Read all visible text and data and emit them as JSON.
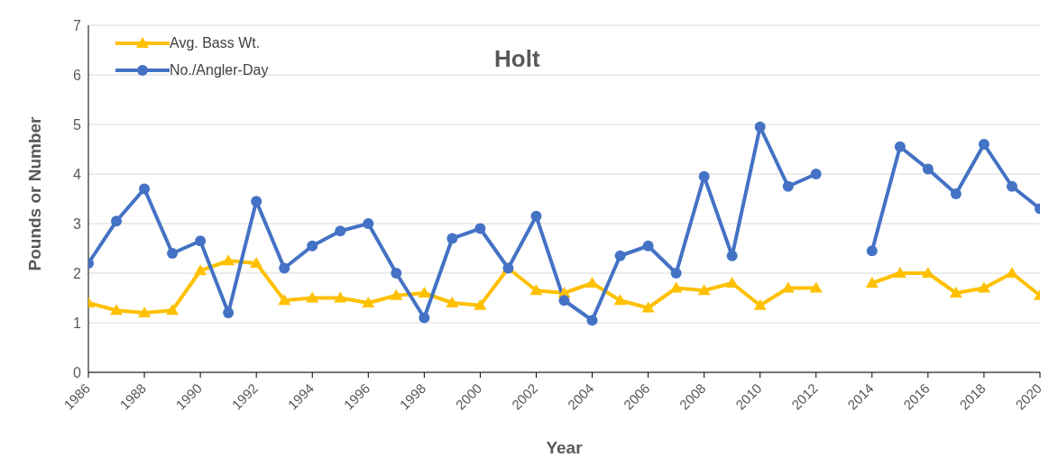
{
  "chart_data": {
    "type": "line",
    "title": "Holt",
    "xlabel": "Year",
    "ylabel": "Pounds or Number",
    "x": [
      1986,
      1987,
      1988,
      1989,
      1990,
      1991,
      1992,
      1993,
      1994,
      1995,
      1996,
      1997,
      1998,
      1999,
      2000,
      2001,
      2002,
      2003,
      2004,
      2005,
      2006,
      2007,
      2008,
      2009,
      2010,
      2011,
      2012,
      2013,
      2014,
      2015,
      2016,
      2017,
      2018,
      2019,
      2020
    ],
    "series": [
      {
        "name": "Avg. Bass Wt.",
        "color": "#ffc000",
        "marker": "triangle",
        "values": [
          1.4,
          1.25,
          1.2,
          1.25,
          2.05,
          2.25,
          2.2,
          1.45,
          1.5,
          1.5,
          1.4,
          1.55,
          1.6,
          1.4,
          1.35,
          2.1,
          1.65,
          1.6,
          1.8,
          1.45,
          1.3,
          1.7,
          1.65,
          1.8,
          1.35,
          1.7,
          1.7,
          null,
          1.8,
          2.0,
          2.0,
          1.6,
          1.7,
          2.0,
          1.55
        ]
      },
      {
        "name": "No./Angler-Day",
        "color": "#4472c4",
        "marker": "circle",
        "values": [
          2.2,
          3.05,
          3.7,
          2.4,
          2.65,
          1.2,
          3.45,
          2.1,
          2.55,
          2.85,
          3.0,
          2.0,
          1.1,
          2.7,
          2.9,
          2.1,
          3.15,
          1.45,
          1.05,
          2.35,
          2.55,
          2.0,
          3.95,
          2.35,
          4.95,
          3.75,
          4.0,
          null,
          2.45,
          4.55,
          4.1,
          3.6,
          4.6,
          3.75,
          3.3
        ]
      }
    ],
    "xlim": [
      1986,
      2020
    ],
    "xticks": [
      1986,
      1988,
      1990,
      1992,
      1994,
      1996,
      1998,
      2000,
      2002,
      2004,
      2006,
      2008,
      2010,
      2012,
      2014,
      2016,
      2018,
      2020
    ],
    "ylim": [
      0,
      7
    ],
    "yticks": [
      0,
      1,
      2,
      3,
      4,
      5,
      6,
      7
    ],
    "grid": "y",
    "legend": "top left",
    "line_style": "solid"
  }
}
